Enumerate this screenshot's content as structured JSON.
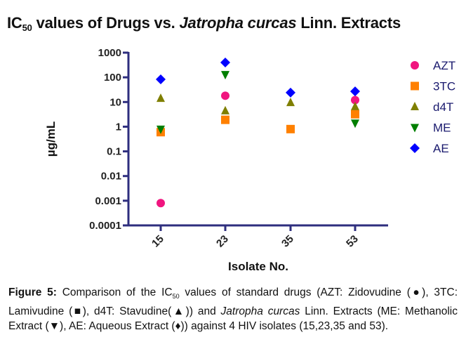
{
  "title": {
    "prefix": "IC",
    "subscript": "50",
    "mid": " values of Drugs vs. ",
    "italic": "Jatropha curcas",
    "suffix": " Linn. Extracts"
  },
  "chart_data": {
    "type": "scatter",
    "title": "IC50 values of Drugs vs. Jatropha curcas Linn. Extracts",
    "xlabel": "Isolate No.",
    "ylabel": "µg/mL",
    "yscale": "log",
    "ylim": [
      0.0001,
      1000
    ],
    "yticks": [
      1000,
      100,
      10,
      1,
      0.1,
      0.01,
      0.001,
      0.0001
    ],
    "ytick_labels": [
      "1000",
      "100",
      "10",
      "1",
      "0.1",
      "0.01",
      "0.001",
      "0.0001"
    ],
    "categories": [
      "15",
      "23",
      "35",
      "53"
    ],
    "grid": false,
    "legend_position": "right",
    "series": [
      {
        "name": "AZT",
        "marker": "circle",
        "color": "#f0157f",
        "values": [
          0.0008,
          18,
          null,
          12
        ]
      },
      {
        "name": "3TC",
        "marker": "square",
        "color": "#ff8000",
        "values": [
          0.6,
          1.9,
          0.8,
          3.2
        ]
      },
      {
        "name": "d4T",
        "marker": "triangle-up",
        "color": "#7f7f00",
        "values": [
          14,
          4.4,
          9.5,
          6.5
        ]
      },
      {
        "name": "ME",
        "marker": "triangle-down",
        "color": "#007f00",
        "values": [
          0.8,
          130,
          null,
          1.4
        ]
      },
      {
        "name": "AE",
        "marker": "diamond",
        "color": "#0000ff",
        "values": [
          83,
          400,
          24,
          27
        ]
      }
    ],
    "axis_color": "#2e2e7e"
  },
  "caption": {
    "label": "Figure 5:",
    "part1": " Comparison of the IC",
    "subscript": "50",
    "part2": " values of standard drugs (AZT: Zidovudine (●), 3TC: Lamivudine (■), d4T: Stavudine(▲)) and ",
    "italic": "Jatropha curcas",
    "part3": " Linn. Extracts (ME: Methanolic Extract (▼), AE: Aqueous Extract (♦)) against 4 HIV isolates (15,23,35 and 53)."
  }
}
